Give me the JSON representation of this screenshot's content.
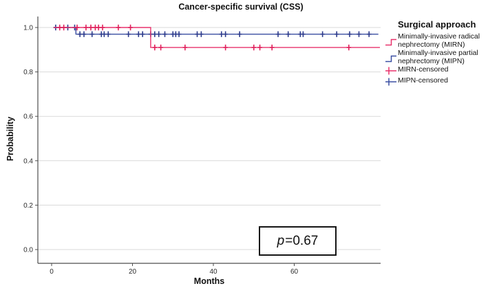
{
  "figure": {
    "title": "Cancer-specific survival (CSS)",
    "p_annotation": {
      "symbol": "p",
      "value": "=0.67"
    }
  },
  "chart_data": {
    "type": "line",
    "subtype": "kaplan-meier-step",
    "title": "Cancer-specific survival (CSS)",
    "xlabel": "Months",
    "ylabel": "Probability",
    "xlim": [
      -3.5,
      81.5
    ],
    "ylim": [
      -0.062,
      1.05
    ],
    "grid": "horizontal-only",
    "legend_position": "right",
    "annotation": "p=0.67",
    "x_ticks": [
      {
        "label": "0",
        "value": 0
      },
      {
        "label": "20",
        "value": 20
      },
      {
        "label": "40",
        "value": 40
      },
      {
        "label": "60",
        "value": 60
      }
    ],
    "y_ticks": [
      {
        "label": "1.0",
        "value": 1.0
      },
      {
        "label": "0.8",
        "value": 0.8
      },
      {
        "label": "0.6",
        "value": 0.6
      },
      {
        "label": "0.4",
        "value": 0.4
      },
      {
        "label": "0.2",
        "value": 0.2
      },
      {
        "label": "0.0",
        "value": 0.0
      }
    ],
    "series": [
      {
        "name": "Minimally-invasive partial nephrectomy (MIPN)",
        "short_name": "MIPN",
        "color": "#3a4fa2",
        "censor_color": "#2b3a8c",
        "steps": [
          [
            0.5,
            1.0
          ],
          [
            6,
            1.0
          ],
          [
            6,
            0.97
          ],
          [
            80.8,
            0.97
          ]
        ],
        "censored": [
          [
            1,
            1.0
          ],
          [
            4,
            1.0
          ],
          [
            5.7,
            1.0
          ],
          [
            7,
            0.97
          ],
          [
            8,
            0.97
          ],
          [
            10,
            0.97
          ],
          [
            12.3,
            0.97
          ],
          [
            13,
            0.97
          ],
          [
            14,
            0.97
          ],
          [
            19,
            0.97
          ],
          [
            21.5,
            0.97
          ],
          [
            22.5,
            0.97
          ],
          [
            24.5,
            0.97
          ],
          [
            25.5,
            0.97
          ],
          [
            26.5,
            0.97
          ],
          [
            28,
            0.97
          ],
          [
            30,
            0.97
          ],
          [
            30.7,
            0.97
          ],
          [
            31.5,
            0.97
          ],
          [
            36,
            0.97
          ],
          [
            37,
            0.97
          ],
          [
            42,
            0.97
          ],
          [
            43,
            0.97
          ],
          [
            46.5,
            0.97
          ],
          [
            56,
            0.97
          ],
          [
            58.5,
            0.97
          ],
          [
            61.5,
            0.97
          ],
          [
            62.2,
            0.97
          ],
          [
            67,
            0.97
          ],
          [
            70.5,
            0.97
          ],
          [
            73.7,
            0.97
          ],
          [
            76,
            0.97
          ],
          [
            78.5,
            0.97
          ]
        ]
      },
      {
        "name": "Minimally-invasive radical nephrectomy (MIRN)",
        "short_name": "MIRN",
        "color": "#e8316b",
        "censor_color": "#e0215c",
        "steps": [
          [
            0.5,
            1.0
          ],
          [
            24.5,
            1.0
          ],
          [
            24.5,
            0.91
          ],
          [
            81.2,
            0.91
          ]
        ],
        "censored": [
          [
            2,
            1.0
          ],
          [
            3,
            1.0
          ],
          [
            6.3,
            1.0
          ],
          [
            8.5,
            1.0
          ],
          [
            9.7,
            1.0
          ],
          [
            10.8,
            1.0
          ],
          [
            11.6,
            1.0
          ],
          [
            12.6,
            1.0
          ],
          [
            16.5,
            1.0
          ],
          [
            19.5,
            1.0
          ],
          [
            25.5,
            0.91
          ],
          [
            27,
            0.91
          ],
          [
            33,
            0.91
          ],
          [
            43,
            0.91
          ],
          [
            50,
            0.91
          ],
          [
            51.5,
            0.91
          ],
          [
            54.5,
            0.91
          ],
          [
            73.5,
            0.91
          ]
        ]
      }
    ]
  },
  "legend": {
    "title": "Surgical approach",
    "items": [
      {
        "label": "Minimally-invasive radical nephrectomy (MIRN)",
        "glyph": "step-line",
        "color": "#e8316b"
      },
      {
        "label": "Minimally-invasive partial nephrectomy (MIPN)",
        "glyph": "step-line",
        "color": "#3a4fa2"
      },
      {
        "label": "MIRN-censored",
        "glyph": "plus-line",
        "color": "#e8316b"
      },
      {
        "label": "MIPN-censored",
        "glyph": "plus-line",
        "color": "#3a4fa2"
      }
    ]
  }
}
